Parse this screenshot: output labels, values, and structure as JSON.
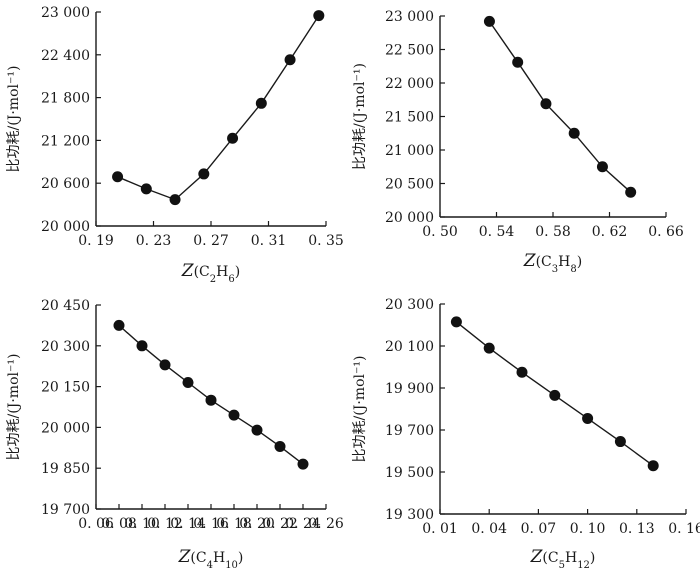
{
  "chart_data": [
    {
      "type": "line",
      "xlabel_main": "Z",
      "xlabel_sub": "(C2H6)",
      "xlabel_parts": [
        {
          "t": "Z",
          "cls": "italic"
        },
        {
          "t": "(C"
        },
        {
          "t": "2",
          "sub": true
        },
        {
          "t": "H"
        },
        {
          "t": "6",
          "sub": true
        },
        {
          "t": ")"
        }
      ],
      "ylabel": "比功耗/(J·mol⁻¹)",
      "xlim": [
        0.19,
        0.35
      ],
      "ylim": [
        20000,
        23000
      ],
      "x_ticks": [
        0.19,
        0.23,
        0.27,
        0.31,
        0.35
      ],
      "x_tick_labels": [
        "0. 19",
        "0. 23",
        "0. 27",
        "0. 31",
        "0. 35"
      ],
      "y_ticks": [
        20000,
        20600,
        21200,
        21800,
        22400,
        23000
      ],
      "y_tick_labels": [
        "20 000",
        "20 600",
        "21 200",
        "21 800",
        "22 400",
        "23 000"
      ],
      "x": [
        0.205,
        0.225,
        0.245,
        0.265,
        0.285,
        0.305,
        0.325,
        0.345
      ],
      "y": [
        20690,
        20520,
        20370,
        20730,
        21230,
        21720,
        22330,
        22950
      ]
    },
    {
      "type": "line",
      "xlabel_parts": [
        {
          "t": "Z",
          "cls": "italic"
        },
        {
          "t": "(C"
        },
        {
          "t": "3",
          "sub": true
        },
        {
          "t": "H"
        },
        {
          "t": "8",
          "sub": true
        },
        {
          "t": ")"
        }
      ],
      "ylabel": "比功耗/(J·mol⁻¹)",
      "xlim": [
        0.5,
        0.66
      ],
      "ylim": [
        20000,
        23000
      ],
      "x_ticks": [
        0.5,
        0.54,
        0.58,
        0.62,
        0.66
      ],
      "x_tick_labels": [
        "0. 50",
        "0. 54",
        "0. 58",
        "0. 62",
        "0. 66"
      ],
      "y_ticks": [
        20000,
        20500,
        21000,
        21500,
        22000,
        22500,
        23000
      ],
      "y_tick_labels": [
        "20 000",
        "20 500",
        "21 000",
        "21 500",
        "22 000",
        "22 500",
        "23 000"
      ],
      "x": [
        0.535,
        0.555,
        0.575,
        0.595,
        0.615,
        0.635
      ],
      "y": [
        22920,
        22310,
        21690,
        21250,
        20750,
        20370
      ]
    },
    {
      "type": "line",
      "xlabel_parts": [
        {
          "t": "Z",
          "cls": "italic"
        },
        {
          "t": "(C"
        },
        {
          "t": "4",
          "sub": true
        },
        {
          "t": "H"
        },
        {
          "t": "10",
          "sub": true
        },
        {
          "t": ")"
        }
      ],
      "ylabel": "比功耗/(J·mol⁻¹)",
      "xlim": [
        0.06,
        0.26
      ],
      "ylim": [
        19700,
        20450
      ],
      "x_ticks": [
        0.06,
        0.08,
        0.1,
        0.12,
        0.14,
        0.16,
        0.18,
        0.2,
        0.22,
        0.24,
        0.26
      ],
      "x_tick_labels": [
        "0. 06",
        "0. 08",
        "0. 10",
        "0. 12",
        "0. 14",
        "0. 16",
        "0. 18",
        "0. 20",
        "0. 22",
        "0. 24",
        "0. 26"
      ],
      "y_ticks": [
        19700,
        19850,
        20000,
        20150,
        20300,
        20450
      ],
      "y_tick_labels": [
        "19 700",
        "19 850",
        "20 000",
        "20 150",
        "20 300",
        "20 450"
      ],
      "x": [
        0.08,
        0.1,
        0.12,
        0.14,
        0.16,
        0.18,
        0.2,
        0.22,
        0.24
      ],
      "y": [
        20375,
        20300,
        20230,
        20165,
        20100,
        20045,
        19990,
        19930,
        19865
      ]
    },
    {
      "type": "line",
      "xlabel_parts": [
        {
          "t": "Z",
          "cls": "italic"
        },
        {
          "t": "(C"
        },
        {
          "t": "5",
          "sub": true
        },
        {
          "t": "H"
        },
        {
          "t": "12",
          "sub": true
        },
        {
          "t": ")"
        }
      ],
      "ylabel": "比功耗/(J·mol⁻¹)",
      "xlim": [
        0.01,
        0.16
      ],
      "ylim": [
        19300,
        20300
      ],
      "x_ticks": [
        0.01,
        0.04,
        0.07,
        0.1,
        0.13,
        0.16
      ],
      "x_tick_labels": [
        "0. 01",
        "0. 04",
        "0. 07",
        "0. 10",
        "0. 13",
        "0. 16"
      ],
      "y_ticks": [
        19300,
        19500,
        19700,
        19900,
        20100,
        20300
      ],
      "y_tick_labels": [
        "19 300",
        "19 500",
        "19 700",
        "19 900",
        "20 100",
        "20 300"
      ],
      "x": [
        0.02,
        0.04,
        0.06,
        0.08,
        0.1,
        0.12,
        0.14
      ],
      "y": [
        20215,
        20090,
        19975,
        19865,
        19755,
        19645,
        19530
      ]
    }
  ]
}
